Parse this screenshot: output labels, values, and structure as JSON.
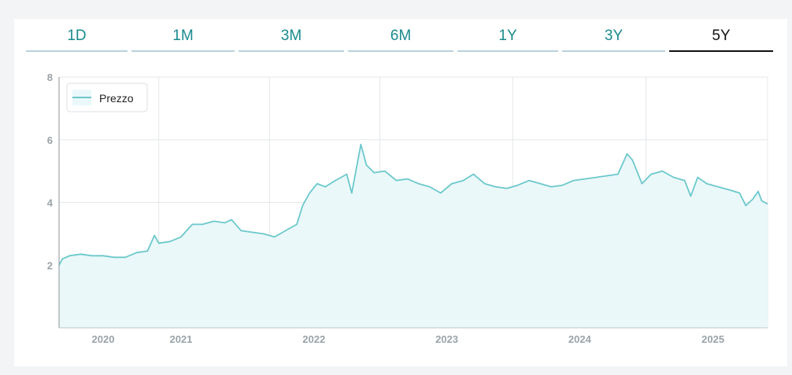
{
  "tabs": {
    "items": [
      {
        "label": "1D"
      },
      {
        "label": "1M"
      },
      {
        "label": "3M"
      },
      {
        "label": "6M"
      },
      {
        "label": "1Y"
      },
      {
        "label": "3Y"
      },
      {
        "label": "5Y"
      }
    ],
    "active_index": 6
  },
  "colors": {
    "line": "#6cc8cc",
    "fill": "#eaf8f9",
    "grid": "#e4e7e9",
    "tab_text": "#1a8a8d",
    "tab_active": "#111111"
  },
  "chart_data": {
    "type": "area",
    "title": "",
    "xlabel": "",
    "ylabel": "",
    "legend": {
      "label": "Prezzo",
      "placement": "top-left"
    },
    "ylim": [
      0,
      8
    ],
    "y_ticks": [
      2,
      4,
      6,
      8
    ],
    "xlim": [
      "2020-02-01",
      "2025-05-31"
    ],
    "x_ticks": [
      {
        "label": "2020",
        "date": "2020-06-01"
      },
      {
        "label": "2021",
        "date": "2021-01-01"
      },
      {
        "label": "2022",
        "date": "2022-01-01"
      },
      {
        "label": "2023",
        "date": "2023-01-01"
      },
      {
        "label": "2024",
        "date": "2024-01-01"
      },
      {
        "label": "2025",
        "date": "2025-01-01"
      }
    ],
    "grid": true,
    "series": [
      {
        "name": "Prezzo",
        "points": [
          [
            "2020-02-01",
            2.0
          ],
          [
            "2020-02-10",
            2.2
          ],
          [
            "2020-03-01",
            2.3
          ],
          [
            "2020-04-01",
            2.35
          ],
          [
            "2020-05-01",
            2.3
          ],
          [
            "2020-06-01",
            2.3
          ],
          [
            "2020-07-01",
            2.25
          ],
          [
            "2020-08-01",
            2.25
          ],
          [
            "2020-09-01",
            2.4
          ],
          [
            "2020-10-01",
            2.45
          ],
          [
            "2020-10-20",
            2.95
          ],
          [
            "2020-11-01",
            2.7
          ],
          [
            "2020-12-01",
            2.75
          ],
          [
            "2021-01-01",
            2.9
          ],
          [
            "2021-02-01",
            3.3
          ],
          [
            "2021-03-01",
            3.3
          ],
          [
            "2021-04-01",
            3.4
          ],
          [
            "2021-05-01",
            3.35
          ],
          [
            "2021-05-20",
            3.45
          ],
          [
            "2021-06-15",
            3.1
          ],
          [
            "2021-07-15",
            3.05
          ],
          [
            "2021-08-15",
            3.0
          ],
          [
            "2021-09-15",
            2.9
          ],
          [
            "2021-10-15",
            3.1
          ],
          [
            "2021-11-15",
            3.3
          ],
          [
            "2021-12-01",
            3.9
          ],
          [
            "2021-12-20",
            4.3
          ],
          [
            "2022-01-10",
            4.6
          ],
          [
            "2022-02-01",
            4.5
          ],
          [
            "2022-03-01",
            4.7
          ],
          [
            "2022-04-01",
            4.9
          ],
          [
            "2022-04-15",
            4.3
          ],
          [
            "2022-05-10",
            5.85
          ],
          [
            "2022-05-25",
            5.2
          ],
          [
            "2022-06-15",
            4.95
          ],
          [
            "2022-07-15",
            5.0
          ],
          [
            "2022-08-15",
            4.7
          ],
          [
            "2022-09-15",
            4.75
          ],
          [
            "2022-10-15",
            4.6
          ],
          [
            "2022-11-15",
            4.5
          ],
          [
            "2022-12-15",
            4.3
          ],
          [
            "2023-01-15",
            4.6
          ],
          [
            "2023-02-15",
            4.7
          ],
          [
            "2023-03-15",
            4.9
          ],
          [
            "2023-04-15",
            4.6
          ],
          [
            "2023-05-15",
            4.5
          ],
          [
            "2023-06-15",
            4.45
          ],
          [
            "2023-07-15",
            4.55
          ],
          [
            "2023-08-15",
            4.7
          ],
          [
            "2023-09-15",
            4.6
          ],
          [
            "2023-10-15",
            4.5
          ],
          [
            "2023-11-15",
            4.55
          ],
          [
            "2023-12-15",
            4.7
          ],
          [
            "2024-01-15",
            4.75
          ],
          [
            "2024-02-15",
            4.8
          ],
          [
            "2024-03-15",
            4.85
          ],
          [
            "2024-04-15",
            4.9
          ],
          [
            "2024-05-10",
            5.55
          ],
          [
            "2024-05-25",
            5.35
          ],
          [
            "2024-06-20",
            4.6
          ],
          [
            "2024-07-15",
            4.9
          ],
          [
            "2024-08-15",
            5.0
          ],
          [
            "2024-09-15",
            4.8
          ],
          [
            "2024-10-15",
            4.7
          ],
          [
            "2024-11-01",
            4.2
          ],
          [
            "2024-11-20",
            4.8
          ],
          [
            "2024-12-15",
            4.6
          ],
          [
            "2025-01-15",
            4.5
          ],
          [
            "2025-02-15",
            4.4
          ],
          [
            "2025-03-15",
            4.3
          ],
          [
            "2025-04-01",
            3.9
          ],
          [
            "2025-04-20",
            4.1
          ],
          [
            "2025-05-05",
            4.35
          ],
          [
            "2025-05-15",
            4.05
          ],
          [
            "2025-05-31",
            3.95
          ]
        ]
      }
    ]
  }
}
